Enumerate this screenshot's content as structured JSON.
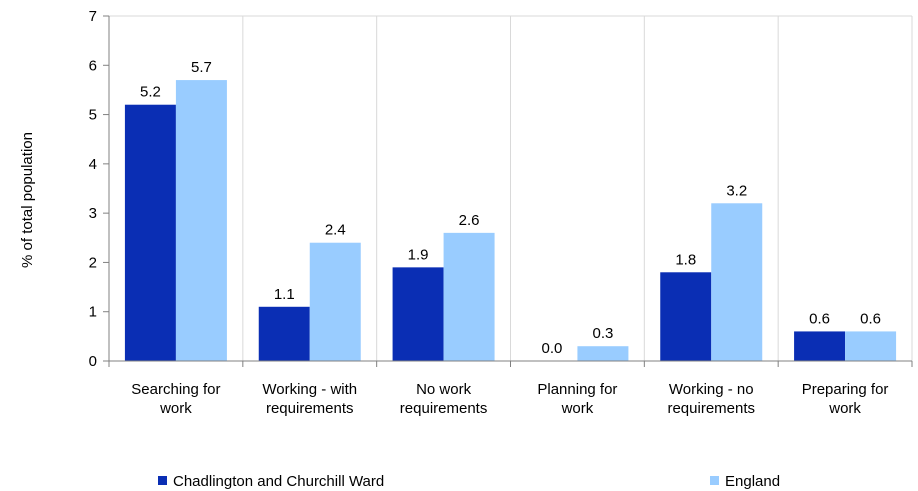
{
  "chart_data": {
    "type": "bar",
    "title": "",
    "xlabel": "",
    "ylabel": "% of total population",
    "ylim": [
      0,
      7
    ],
    "yticks": [
      "0",
      "1",
      "2",
      "3",
      "4",
      "5",
      "6",
      "7"
    ],
    "grid": true,
    "legend_position": "bottom",
    "categories": [
      [
        "Searching for",
        "work"
      ],
      [
        "Working - with",
        "requirements"
      ],
      [
        "No work",
        "requirements"
      ],
      [
        "Planning for",
        "work"
      ],
      [
        "Working - no",
        "requirements"
      ],
      [
        "Preparing for",
        "work"
      ]
    ],
    "series": [
      {
        "name": "Chadlington and Churchill Ward",
        "color": "#0a2eb4",
        "values": [
          5.2,
          1.1,
          1.9,
          0.0,
          1.8,
          0.6
        ],
        "labels": [
          "5.2",
          "1.1",
          "1.9",
          "0.0",
          "1.8",
          "0.6"
        ]
      },
      {
        "name": "England",
        "color": "#99ccff",
        "values": [
          5.7,
          2.4,
          2.6,
          0.3,
          3.2,
          0.6
        ],
        "labels": [
          "5.7",
          "2.4",
          "2.6",
          "0.3",
          "3.2",
          "0.6"
        ]
      }
    ]
  }
}
